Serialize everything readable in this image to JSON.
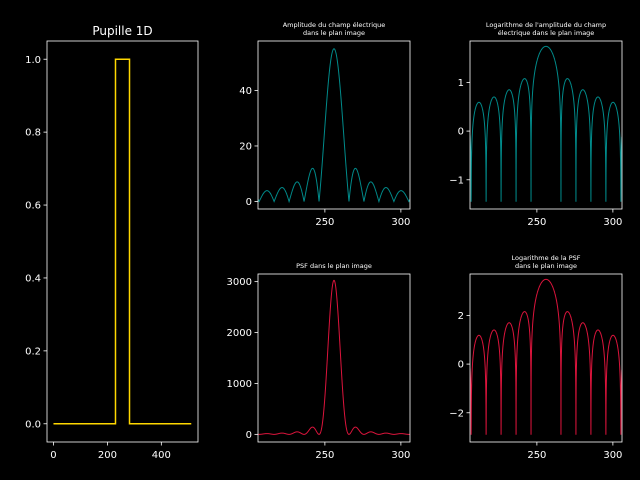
{
  "figure": {
    "background": "#000000",
    "foreground": "#ffffff"
  },
  "chart_data": [
    {
      "type": "line",
      "title": "Pupille 1D",
      "xlim": [
        -24,
        536
      ],
      "ylim": [
        -0.05,
        1.05
      ],
      "xticks": [
        0,
        200,
        400
      ],
      "xtick_labels": [
        "0",
        "200",
        "400"
      ],
      "yticks": [
        0,
        0.2,
        0.4,
        0.6,
        0.8,
        1.0
      ],
      "ytick_labels": [
        "0.0",
        "0.2",
        "0.4",
        "0.6",
        "0.8",
        "1.0"
      ],
      "color": "#ffd700",
      "series": [
        {
          "x": [
            0,
            230,
            230,
            282,
            282,
            511
          ],
          "y": [
            0,
            0,
            1,
            1,
            0,
            0
          ]
        }
      ]
    },
    {
      "type": "line",
      "title": "Amplitude du champ électrique\ndans le plan image",
      "xlim": [
        206,
        306
      ],
      "ylim": [
        -2.7,
        57.8
      ],
      "xticks": [
        250,
        300
      ],
      "xtick_labels": [
        "250",
        "300"
      ],
      "yticks": [
        0,
        20,
        40
      ],
      "ytick_labels": [
        "0",
        "20",
        "40"
      ],
      "color": "#008b8b",
      "model": "abs_sinc",
      "center": 256,
      "period": 9.85,
      "peak": 55
    },
    {
      "type": "line",
      "title": "Logarithme de l'amplitude du champ\nélectrique dans le plan image",
      "xlim": [
        206,
        306
      ],
      "ylim": [
        -1.6,
        1.85
      ],
      "xticks": [
        250,
        300
      ],
      "xtick_labels": [
        "250",
        "300"
      ],
      "yticks": [
        -1,
        0,
        1
      ],
      "ytick_labels": [
        "−1",
        "0",
        "1"
      ],
      "color": "#008b8b",
      "model": "log10_abs_sinc",
      "center": 256,
      "period": 9.85,
      "peak": 55,
      "floor": -1.45
    },
    {
      "type": "line",
      "title": "PSF dans le plan image",
      "xlim": [
        206,
        306
      ],
      "ylim": [
        -150,
        3150
      ],
      "xticks": [
        250,
        300
      ],
      "xtick_labels": [
        "250",
        "300"
      ],
      "yticks": [
        0,
        1000,
        2000,
        3000
      ],
      "ytick_labels": [
        "0",
        "1000",
        "2000",
        "3000"
      ],
      "color": "#dc143c",
      "model": "sinc_squared",
      "center": 256,
      "period": 9.85,
      "peak": 3025
    },
    {
      "type": "line",
      "title": "Logarithme de la PSF\ndans le plan image",
      "xlim": [
        206,
        306
      ],
      "ylim": [
        -3.2,
        3.7
      ],
      "xticks": [
        250,
        300
      ],
      "xtick_labels": [
        "250",
        "300"
      ],
      "yticks": [
        -2,
        0,
        2
      ],
      "ytick_labels": [
        "−2",
        "0",
        "2"
      ],
      "color": "#dc143c",
      "model": "log10_sinc_squared",
      "center": 256,
      "period": 9.85,
      "peak": 3025,
      "floor": -2.9
    }
  ]
}
